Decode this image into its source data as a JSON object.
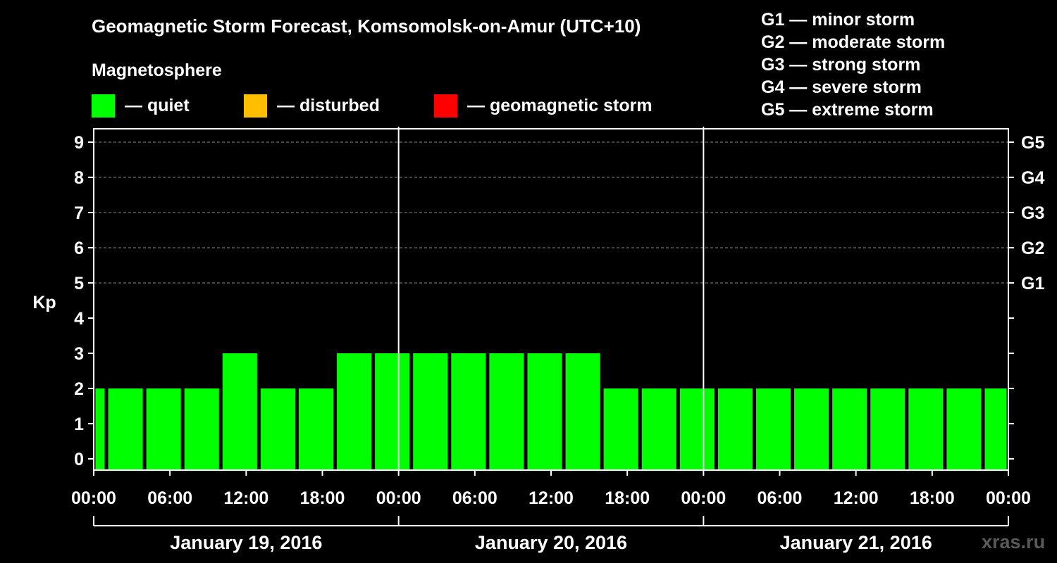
{
  "legend": {
    "heading": "Magnetosphere",
    "items": [
      {
        "label": "— quiet",
        "color": "#00ff00"
      },
      {
        "label": "— disturbed",
        "color": "#ffbf00"
      },
      {
        "label": "— geomagnetic storm",
        "color": "#ff0000"
      }
    ]
  },
  "storm_scale": [
    "G1 — minor storm",
    "G2 — moderate storm",
    "G3 — strong storm",
    "G4 — severe storm",
    "G5 — extreme storm"
  ],
  "watermark": "xras.ru",
  "chart_data": {
    "type": "bar",
    "title": "Geomagnetic Storm Forecast, Komsomolsk-on-Amur (UTC+10)",
    "ylabel": "Kp",
    "ylim": [
      0,
      9
    ],
    "yticks": [
      0,
      1,
      2,
      3,
      4,
      5,
      6,
      7,
      8,
      9
    ],
    "right_axis_labels": [
      {
        "kp": 5,
        "label": "G1"
      },
      {
        "kp": 6,
        "label": "G2"
      },
      {
        "kp": 7,
        "label": "G3"
      },
      {
        "kp": 8,
        "label": "G4"
      },
      {
        "kp": 9,
        "label": "G5"
      }
    ],
    "grid": "dashed horizontal lines at Kp 5–9",
    "x_range_hours": [
      0,
      72
    ],
    "bar_interval_hours": 3,
    "x_tick_labels": [
      "00:00",
      "06:00",
      "12:00",
      "18:00",
      "00:00",
      "06:00",
      "12:00",
      "18:00",
      "00:00",
      "06:00",
      "12:00",
      "18:00",
      "00:00"
    ],
    "dates": [
      "January 19, 2016",
      "January 20, 2016",
      "January 21, 2016"
    ],
    "bars": [
      {
        "start_hour": 0,
        "end_hour": 1,
        "kp": 2,
        "category": "quiet"
      },
      {
        "start_hour": 1,
        "end_hour": 4,
        "kp": 2,
        "category": "quiet"
      },
      {
        "start_hour": 4,
        "end_hour": 7,
        "kp": 2,
        "category": "quiet"
      },
      {
        "start_hour": 7,
        "end_hour": 10,
        "kp": 2,
        "category": "quiet"
      },
      {
        "start_hour": 10,
        "end_hour": 13,
        "kp": 3,
        "category": "quiet"
      },
      {
        "start_hour": 13,
        "end_hour": 16,
        "kp": 2,
        "category": "quiet"
      },
      {
        "start_hour": 16,
        "end_hour": 19,
        "kp": 2,
        "category": "quiet"
      },
      {
        "start_hour": 19,
        "end_hour": 22,
        "kp": 3,
        "category": "quiet"
      },
      {
        "start_hour": 22,
        "end_hour": 25,
        "kp": 3,
        "category": "quiet"
      },
      {
        "start_hour": 25,
        "end_hour": 28,
        "kp": 3,
        "category": "quiet"
      },
      {
        "start_hour": 28,
        "end_hour": 31,
        "kp": 3,
        "category": "quiet"
      },
      {
        "start_hour": 31,
        "end_hour": 34,
        "kp": 3,
        "category": "quiet"
      },
      {
        "start_hour": 34,
        "end_hour": 37,
        "kp": 3,
        "category": "quiet"
      },
      {
        "start_hour": 37,
        "end_hour": 40,
        "kp": 3,
        "category": "quiet"
      },
      {
        "start_hour": 40,
        "end_hour": 43,
        "kp": 2,
        "category": "quiet"
      },
      {
        "start_hour": 43,
        "end_hour": 46,
        "kp": 2,
        "category": "quiet"
      },
      {
        "start_hour": 46,
        "end_hour": 49,
        "kp": 2,
        "category": "quiet"
      },
      {
        "start_hour": 49,
        "end_hour": 52,
        "kp": 2,
        "category": "quiet"
      },
      {
        "start_hour": 52,
        "end_hour": 55,
        "kp": 2,
        "category": "quiet"
      },
      {
        "start_hour": 55,
        "end_hour": 58,
        "kp": 2,
        "category": "quiet"
      },
      {
        "start_hour": 58,
        "end_hour": 61,
        "kp": 2,
        "category": "quiet"
      },
      {
        "start_hour": 61,
        "end_hour": 64,
        "kp": 2,
        "category": "quiet"
      },
      {
        "start_hour": 64,
        "end_hour": 67,
        "kp": 2,
        "category": "quiet"
      },
      {
        "start_hour": 67,
        "end_hour": 70,
        "kp": 2,
        "category": "quiet"
      },
      {
        "start_hour": 70,
        "end_hour": 72,
        "kp": 2,
        "category": "quiet"
      }
    ],
    "category_colors": {
      "quiet": "#00ff00",
      "disturbed": "#ffbf00",
      "storm": "#ff0000"
    }
  }
}
